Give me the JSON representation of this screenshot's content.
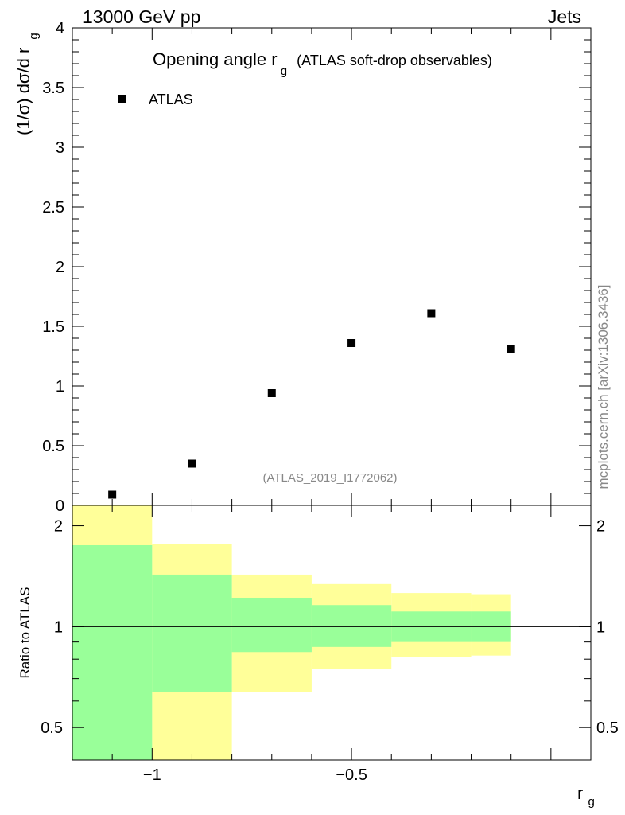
{
  "header": {
    "left": "13000 GeV pp",
    "right": "Jets"
  },
  "side_label": "mcplots.cern.ch [arXiv:1306.3436]",
  "watermark": "(ATLAS_2019_I1772062)",
  "chart_data": [
    {
      "type": "scatter",
      "title_main": "Opening angle r",
      "title_sub": "g",
      "title_extra": "(ATLAS soft-drop observables)",
      "ylabel_main": "(1/σ) dσ/d r",
      "ylabel_sub": "g",
      "xlim": [
        -1.2,
        0.1
      ],
      "ylim": [
        0,
        4
      ],
      "yticks": [
        {
          "v": 0,
          "label": "0"
        },
        {
          "v": 0.5,
          "label": "0.5"
        },
        {
          "v": 1,
          "label": "1"
        },
        {
          "v": 1.5,
          "label": "1.5"
        },
        {
          "v": 2,
          "label": "2"
        },
        {
          "v": 2.5,
          "label": "2.5"
        },
        {
          "v": 3,
          "label": "3"
        },
        {
          "v": 3.5,
          "label": "3.5"
        },
        {
          "v": 4,
          "label": "4"
        }
      ],
      "legend": {
        "label": "ATLAS",
        "position": "top-left"
      },
      "series": [
        {
          "name": "ATLAS",
          "color": "#000000",
          "x": [
            -1.1,
            -0.9,
            -0.7,
            -0.5,
            -0.3,
            -0.1
          ],
          "y": [
            0.09,
            0.35,
            0.94,
            1.36,
            1.61,
            1.31
          ]
        }
      ]
    },
    {
      "type": "area",
      "ylabel": "Ratio to ATLAS",
      "xlabel_main": "r",
      "xlabel_sub": "g",
      "xlim": [
        -1.2,
        0.1
      ],
      "ylim": [
        0.4,
        2.3
      ],
      "log_y": true,
      "reference_line": 1,
      "xticks": [
        {
          "v": -1,
          "label": "−1"
        },
        {
          "v": -0.5,
          "label": "−0.5"
        }
      ],
      "yticks": [
        {
          "v": 0.5,
          "label": "0.5"
        },
        {
          "v": 1,
          "label": "1"
        },
        {
          "v": 2,
          "label": "2"
        }
      ],
      "bin_edges": [
        -1.2,
        -1.0,
        -0.8,
        -0.6,
        -0.4,
        -0.2,
        -0.1
      ],
      "bands": [
        {
          "name": "total",
          "color": "#ffff99",
          "lo": [
            0.38,
            0.38,
            0.64,
            0.75,
            0.81,
            0.82
          ],
          "hi": [
            2.45,
            1.76,
            1.43,
            1.34,
            1.26,
            1.25
          ]
        },
        {
          "name": "stat",
          "color": "#99ff99",
          "lo": [
            0.38,
            0.64,
            0.84,
            0.87,
            0.9,
            0.9
          ],
          "hi": [
            1.75,
            1.43,
            1.22,
            1.16,
            1.11,
            1.11
          ]
        }
      ]
    }
  ]
}
